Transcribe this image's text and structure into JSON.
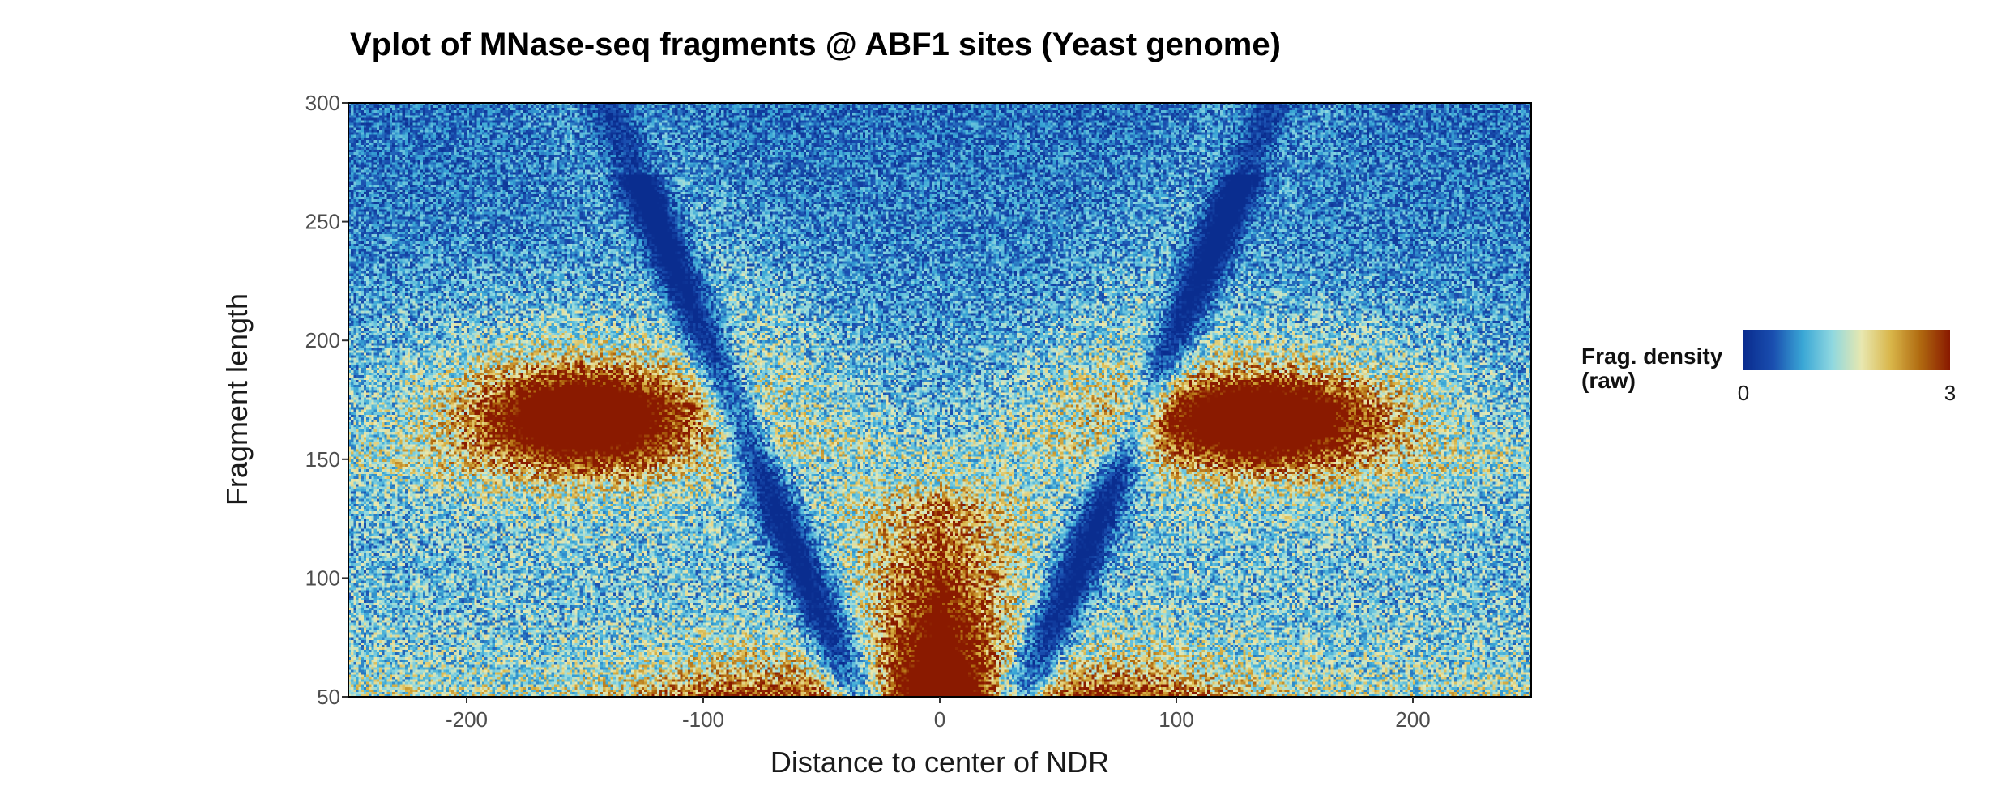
{
  "chart_data": {
    "type": "heatmap",
    "title": "Vplot of MNase-seq fragments @ ABF1 sites (Yeast genome)",
    "xlabel": "Distance to center of NDR",
    "ylabel": "Fragment length",
    "xlim": [
      -250,
      250
    ],
    "ylim": [
      50,
      300
    ],
    "x_ticks": [
      -200,
      -100,
      0,
      100,
      200
    ],
    "y_ticks": [
      50,
      100,
      150,
      200,
      250,
      300
    ],
    "legend": {
      "title_lines": [
        "Frag. density",
        "(raw)"
      ],
      "min": 0,
      "max": 3,
      "tick_labels": [
        "0",
        "3"
      ],
      "placement": "right"
    },
    "colormap": [
      "#0a2d8f",
      "#1a4fb0",
      "#3aa7d6",
      "#8fd8e0",
      "#e8e8b0",
      "#d9b64a",
      "#b06a10",
      "#8a1a00"
    ],
    "features": [
      {
        "name": "nucleosome-minus1",
        "x": -150,
        "y": 168,
        "peak": 3.0
      },
      {
        "name": "nucleosome-plus1",
        "x": 135,
        "y": 167,
        "peak": 3.0
      },
      {
        "name": "ndr-center",
        "x": 0,
        "y": 75,
        "peak": 3.0
      }
    ],
    "grid": false
  }
}
